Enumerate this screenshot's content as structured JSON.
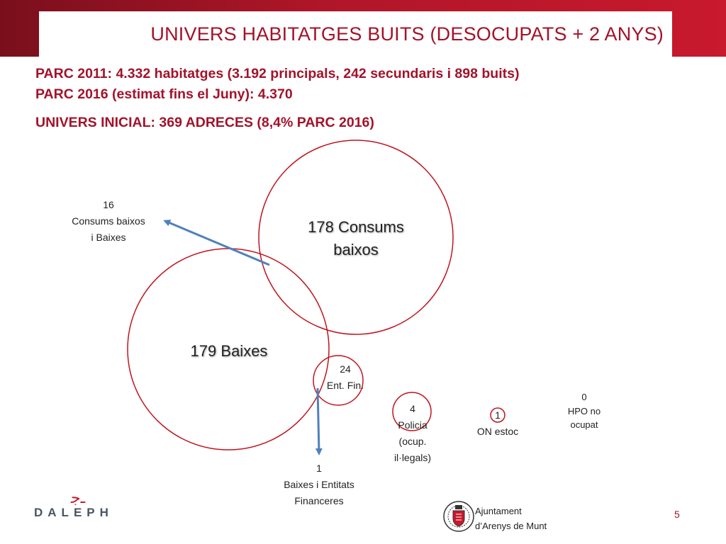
{
  "title": "UNIVERS HABITATGES BUITS (DESOCUPATS + 2 ANYS)",
  "info": {
    "line1": "PARC 2011: 4.332 habitatges (3.192 principals, 242 secundaris i 898 buits)",
    "line2": "PARC 2016 (estimat fins el Juny): 4.370",
    "line3": "UNIVERS INICIAL: 369 ADRECES (8,4% PARC 2016)"
  },
  "diagram": {
    "consums": {
      "value": "178",
      "label1": "Consums",
      "label2": "baixos"
    },
    "baixes": {
      "value": "179",
      "label": "Baixes"
    },
    "overlap": {
      "value": "16",
      "label1": "Consums baixos",
      "label2": "i Baixes"
    },
    "entitats": {
      "value": "24",
      "label": "Ent. Fin."
    },
    "baixes_entitats": {
      "value": "1",
      "label1": "Baixes i Entitats",
      "label2": "Financeres"
    },
    "policia": {
      "value": "4",
      "label1": "Policia",
      "label2": "(ocup.",
      "label3": "il·legals)"
    },
    "estoc": {
      "value": "1",
      "label": "ON estoc"
    },
    "hpo": {
      "value": "0",
      "label1": "HPO no",
      "label2": "ocupat"
    }
  },
  "footer": {
    "daleph": "DALEPH",
    "ajuntament_line1": "Ajuntament",
    "ajuntament_line2": "d’Arenys de Munt",
    "page_number": "5"
  },
  "colors": {
    "brand_red": "#a3122a",
    "circle_red": "#c0141e",
    "arrow_blue": "#4f81bd"
  }
}
